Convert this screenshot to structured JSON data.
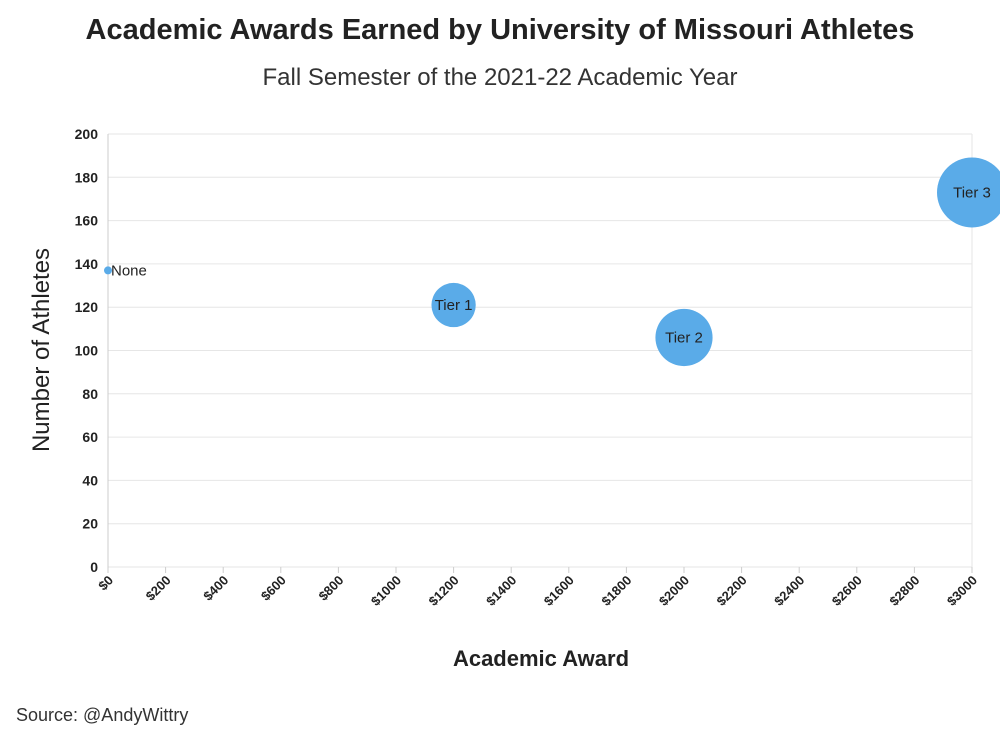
{
  "title": "Academic Awards Earned by University of Missouri Athletes",
  "subtitle": "Fall Semester of the 2021-22 Academic Year",
  "source": "Source: @AndyWittry",
  "colors": {
    "bubble": "#5aabe8"
  },
  "chart_data": {
    "type": "scatter",
    "title": "Academic Awards Earned by University of Missouri Athletes",
    "subtitle": "Fall Semester of the 2021-22 Academic Year",
    "xlabel": "Academic Award",
    "ylabel": "Number of Athletes",
    "xlim": [
      0,
      3000
    ],
    "ylim": [
      0,
      200
    ],
    "x_ticks": [
      0,
      200,
      400,
      600,
      800,
      1000,
      1200,
      1400,
      1600,
      1800,
      2000,
      2200,
      2400,
      2600,
      2800,
      3000
    ],
    "x_tick_labels": [
      "$0",
      "$200",
      "$400",
      "$600",
      "$800",
      "$1000",
      "$1200",
      "$1400",
      "$1600",
      "$1800",
      "$2000",
      "$2200",
      "$2400",
      "$2600",
      "$2800",
      "$3000"
    ],
    "y_ticks": [
      0,
      20,
      40,
      60,
      80,
      100,
      120,
      140,
      160,
      180,
      200
    ],
    "grid": true,
    "points": [
      {
        "label": "None",
        "x": 0,
        "y": 137,
        "size": 0
      },
      {
        "label": "Tier 1",
        "x": 1200,
        "y": 121,
        "size": 1200
      },
      {
        "label": "Tier 2",
        "x": 2000,
        "y": 106,
        "size": 2000
      },
      {
        "label": "Tier 3",
        "x": 3000,
        "y": 173,
        "size": 3000
      }
    ]
  }
}
